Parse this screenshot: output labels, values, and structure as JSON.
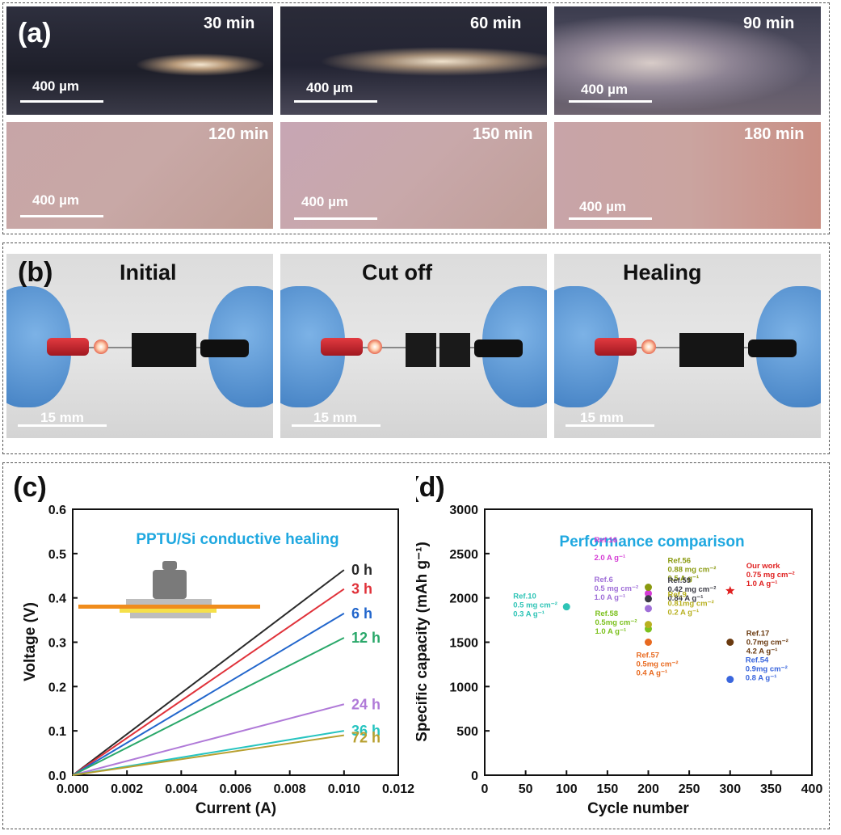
{
  "panel_a": {
    "label": "(a)",
    "images": [
      {
        "time": "30 min",
        "scale": "400 µm"
      },
      {
        "time": "60 min",
        "scale": "400 µm"
      },
      {
        "time": "90 min",
        "scale": "400 µm"
      },
      {
        "time": "120 min",
        "scale": "400 µm"
      },
      {
        "time": "150 min",
        "scale": "400 µm"
      },
      {
        "time": "180 min",
        "scale": "400 µm"
      }
    ]
  },
  "panel_b": {
    "label": "(b)",
    "images": [
      {
        "title": "Initial",
        "scale": "15 mm"
      },
      {
        "title": "Cut off",
        "scale": "15 mm"
      },
      {
        "title": "Healing",
        "scale": "15 mm"
      }
    ]
  },
  "chart_data": [
    {
      "panel": "(c)",
      "type": "line",
      "title": "PPTU/Si conductive healing",
      "xlabel": "Current (A)",
      "ylabel": "Voltage (V)",
      "xlim": [
        0,
        0.012
      ],
      "ylim": [
        0,
        0.6
      ],
      "xticks": [
        "0.000",
        "0.002",
        "0.004",
        "0.006",
        "0.008",
        "0.010",
        "0.012"
      ],
      "yticks": [
        "0.0",
        "0.1",
        "0.2",
        "0.3",
        "0.4",
        "0.5",
        "0.6"
      ],
      "series": [
        {
          "name": "0 h",
          "color": "#2a2a2a",
          "x": [
            0,
            0.01
          ],
          "y": [
            0,
            0.463
          ]
        },
        {
          "name": "3 h",
          "color": "#e0323a",
          "x": [
            0,
            0.01
          ],
          "y": [
            0,
            0.42
          ]
        },
        {
          "name": "6 h",
          "color": "#2266cc",
          "x": [
            0,
            0.01
          ],
          "y": [
            0,
            0.365
          ]
        },
        {
          "name": "12 h",
          "color": "#2aa86a",
          "x": [
            0,
            0.01
          ],
          "y": [
            0,
            0.31
          ]
        },
        {
          "name": "24 h",
          "color": "#b07ad8",
          "x": [
            0,
            0.01
          ],
          "y": [
            0,
            0.16
          ]
        },
        {
          "name": "36 h",
          "color": "#27c4c0",
          "x": [
            0,
            0.01
          ],
          "y": [
            0,
            0.1
          ]
        },
        {
          "name": "72 h",
          "color": "#b8a030",
          "x": [
            0,
            0.01
          ],
          "y": [
            0,
            0.09
          ]
        }
      ]
    },
    {
      "panel": "(d)",
      "type": "scatter",
      "title": "Performance comparison",
      "xlabel": "Cycle number",
      "ylabel": "Specific capacity (mAh g⁻¹)",
      "xlim": [
        0,
        400
      ],
      "ylim": [
        0,
        3000
      ],
      "xticks": [
        "0",
        "50",
        "100",
        "150",
        "200",
        "250",
        "300",
        "350",
        "400"
      ],
      "yticks": [
        "0",
        "500",
        "1000",
        "1500",
        "2000",
        "2500",
        "3000"
      ],
      "points": [
        {
          "x": 100,
          "y": 1900,
          "color": "#2ec4b6",
          "shape": "circle",
          "label": [
            "Ref.10",
            "0.5 mg cm⁻²",
            "0.3 A g⁻¹"
          ]
        },
        {
          "x": 200,
          "y": 2050,
          "color": "#d43bd4",
          "shape": "circle",
          "label": [
            "Ref.16",
            "-",
            "2.0 A g⁻¹"
          ]
        },
        {
          "x": 200,
          "y": 1880,
          "color": "#a070d8",
          "shape": "circle",
          "label": [
            "Ref.6",
            "0.5 mg cm⁻²",
            "1.0 A g⁻¹"
          ]
        },
        {
          "x": 200,
          "y": 1650,
          "color": "#7cc11e",
          "shape": "circle",
          "label": [
            "Ref.58",
            "0.5mg cm⁻²",
            "1.0 A g⁻¹"
          ]
        },
        {
          "x": 200,
          "y": 2120,
          "color": "#8a9a10",
          "shape": "circle",
          "label": [
            "Ref.56",
            "0.88 mg cm⁻²",
            "0.5 A g⁻¹"
          ]
        },
        {
          "x": 200,
          "y": 1990,
          "color": "#3a3a44",
          "shape": "circle",
          "label": [
            "Ref.59",
            "0.42 mg cm⁻²",
            "0.84 A g⁻¹"
          ]
        },
        {
          "x": 200,
          "y": 1700,
          "color": "#b8b020",
          "shape": "circle",
          "label": [
            "Ref.9",
            "0.81mg cm⁻²",
            "0.2 A g⁻¹"
          ]
        },
        {
          "x": 200,
          "y": 1500,
          "color": "#e86a20",
          "shape": "circle",
          "label": [
            "Ref.57",
            "0.5mg cm⁻²",
            "0.4 A g⁻¹"
          ]
        },
        {
          "x": 300,
          "y": 2080,
          "color": "#e02020",
          "shape": "star",
          "label": [
            "Our work",
            "0.75 mg cm⁻²",
            "1.0 A g⁻¹"
          ]
        },
        {
          "x": 300,
          "y": 1500,
          "color": "#6a3a10",
          "shape": "circle",
          "label": [
            "Ref.17",
            "0.7mg cm⁻²",
            "4.2 A g⁻¹"
          ]
        },
        {
          "x": 300,
          "y": 1080,
          "color": "#3a66dd",
          "shape": "circle",
          "label": [
            "Ref.54",
            "0.9mg cm⁻²",
            "0.8 A g⁻¹"
          ]
        }
      ]
    }
  ]
}
